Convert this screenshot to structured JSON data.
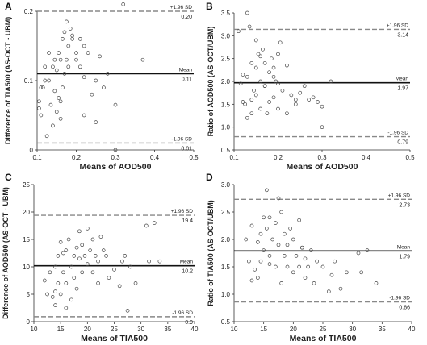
{
  "chart_data": [
    {
      "type": "scatter",
      "panel": "A",
      "xlabel": "Means of AOD500",
      "ylabel": "Difference of TIA500 (AS-OCT - UBM)",
      "xlim": [
        0.1,
        0.5
      ],
      "ylim": [
        0,
        0.2
      ],
      "xticks": [
        "0.1",
        "0.2",
        "0.3",
        "0.4",
        "0.5"
      ],
      "yticks": [
        "0",
        "0.1",
        "0.2"
      ],
      "upper": {
        "label": "+1.96 SD",
        "value": 0.2,
        "text": "0.20"
      },
      "mean": {
        "label": "Mean",
        "value": 0.11,
        "text": "0.11"
      },
      "lower": {
        "label": "-1.96 SD",
        "value": 0.01,
        "text": "0.01"
      },
      "series": [
        {
          "x": [
            0.105,
            0.11,
            0.115,
            0.12,
            0.125,
            0.13,
            0.13,
            0.135,
            0.14,
            0.14,
            0.145,
            0.145,
            0.15,
            0.15,
            0.155,
            0.155,
            0.16,
            0.16,
            0.165,
            0.165,
            0.17,
            0.17,
            0.175,
            0.175,
            0.18,
            0.18,
            0.185,
            0.19,
            0.19,
            0.2,
            0.2,
            0.21,
            0.21,
            0.22,
            0.22,
            0.23,
            0.24,
            0.25,
            0.26,
            0.27,
            0.28,
            0.3,
            0.32,
            0.37,
            0.105,
            0.12,
            0.16,
            0.22,
            0.25,
            0.3,
            0.11
          ],
          "y": [
            0.07,
            0.05,
            0.09,
            0.12,
            0.02,
            0.1,
            0.14,
            0.065,
            0.12,
            0.035,
            0.13,
            0.085,
            0.055,
            0.115,
            0.075,
            0.14,
            0.045,
            0.13,
            0.09,
            0.16,
            0.11,
            0.17,
            0.13,
            0.185,
            0.15,
            0.12,
            0.175,
            0.165,
            0.16,
            0.13,
            0.14,
            0.12,
            0.16,
            0.105,
            0.05,
            0.14,
            0.08,
            0.1,
            0.135,
            0.09,
            0.11,
            0.065,
            0.21,
            0.13,
            0.06,
            0.1,
            0.07,
            0.15,
            0.04,
            0.0,
            0.09
          ]
        }
      ]
    },
    {
      "type": "scatter",
      "panel": "B",
      "xlabel": "Means of AOD500",
      "ylabel": "Ratio of AOD500 (AS-OCT/UBM)",
      "xlim": [
        0.1,
        0.5
      ],
      "ylim": [
        0.5,
        3.5
      ],
      "xticks": [
        "0.1",
        "0.2",
        "0.3",
        "0.4",
        "0.5"
      ],
      "yticks": [
        "0.5",
        "1.0",
        "1.5",
        "2.0",
        "2.5",
        "3.0",
        "3.5"
      ],
      "upper": {
        "label": "+1.96 SD",
        "value": 3.14,
        "text": "3.14"
      },
      "mean": {
        "label": "Mean",
        "value": 1.97,
        "text": "1.97"
      },
      "lower": {
        "label": "-1.96 SD",
        "value": 0.79,
        "text": "0.79"
      },
      "series": [
        {
          "x": [
            0.11,
            0.115,
            0.12,
            0.125,
            0.13,
            0.135,
            0.14,
            0.14,
            0.145,
            0.15,
            0.15,
            0.155,
            0.16,
            0.16,
            0.165,
            0.17,
            0.17,
            0.175,
            0.18,
            0.18,
            0.185,
            0.19,
            0.19,
            0.195,
            0.2,
            0.2,
            0.205,
            0.21,
            0.22,
            0.23,
            0.24,
            0.25,
            0.26,
            0.27,
            0.28,
            0.3,
            0.3,
            0.32,
            0.13,
            0.14,
            0.15,
            0.16,
            0.17,
            0.19,
            0.2,
            0.22,
            0.24,
            0.12,
            0.13,
            0.29
          ],
          "y": [
            3.1,
            1.95,
            2.15,
            1.5,
            3.5,
            3.2,
            2.4,
            1.6,
            1.8,
            2.9,
            2.3,
            2.6,
            2.0,
            1.4,
            2.7,
            1.9,
            2.4,
            1.3,
            2.2,
            1.55,
            2.5,
            2.1,
            1.65,
            2.0,
            1.95,
            2.6,
            2.85,
            1.8,
            2.35,
            1.7,
            1.5,
            1.75,
            1.9,
            1.6,
            1.65,
            1.45,
            1.0,
            2.0,
            2.1,
            1.3,
            1.7,
            2.55,
            1.9,
            2.3,
            1.4,
            1.3,
            1.6,
            1.55,
            1.2,
            1.55
          ]
        }
      ]
    },
    {
      "type": "scatter",
      "panel": "C",
      "xlabel": "Means of TIA500",
      "ylabel": "Difference of AOD500 (AS-OCT - UBM)",
      "xlim": [
        10,
        40
      ],
      "ylim": [
        0,
        25
      ],
      "xticks": [
        "10",
        "15",
        "20",
        "25",
        "30",
        "35",
        "40"
      ],
      "yticks": [
        "0",
        "5",
        "10",
        "15",
        "20",
        "25"
      ],
      "upper": {
        "label": "+1.96 SD",
        "value": 19.4,
        "text": "19.4"
      },
      "mean": {
        "label": "Mean",
        "value": 10.2,
        "text": "10.2"
      },
      "lower": {
        "label": "-1.96 SD",
        "value": 0.9,
        "text": "0.9"
      },
      "series": [
        {
          "x": [
            12,
            12.5,
            13,
            13.5,
            14,
            14,
            14.5,
            14.5,
            15,
            15,
            15.5,
            15.5,
            16,
            16,
            16.5,
            17,
            17,
            17.5,
            17.5,
            18,
            18,
            18.5,
            18.5,
            19,
            19,
            19.5,
            20,
            20,
            20.5,
            21,
            21,
            21.5,
            22,
            22,
            22.5,
            23,
            23.5,
            24,
            25,
            26,
            26.5,
            27,
            28,
            29,
            31,
            31.5,
            32.5,
            33.5,
            14,
            16,
            27.5
          ],
          "y": [
            7.5,
            5,
            9,
            4.5,
            10,
            3,
            7,
            12,
            5,
            14.5,
            9,
            12.5,
            7,
            13,
            15,
            4,
            10,
            8,
            12,
            13.5,
            6,
            16.5,
            11.5,
            9,
            14,
            12,
            10.5,
            17,
            13,
            15,
            9,
            12,
            11,
            7,
            15.5,
            13,
            12,
            8,
            9.5,
            6.5,
            11,
            12,
            10,
            7,
            17.5,
            11,
            18,
            11,
            5.5,
            2.5,
            2
          ]
        }
      ]
    },
    {
      "type": "scatter",
      "panel": "D",
      "xlabel": "Means of TIA500",
      "ylabel": "Ratio of TIA500 (AS-OCT/UBM)",
      "xlim": [
        10,
        40
      ],
      "ylim": [
        0.5,
        3.0
      ],
      "xticks": [
        "10",
        "15",
        "20",
        "25",
        "30",
        "35",
        "40"
      ],
      "yticks": [
        "0.5",
        "1.0",
        "1.5",
        "2.0",
        "2.5",
        "3.0"
      ],
      "upper": {
        "label": "+1.96 SD",
        "value": 2.73,
        "text": "2.73"
      },
      "mean": {
        "label": "Mean",
        "value": 1.79,
        "text": "1.79"
      },
      "lower": {
        "label": "-1.96 SD",
        "value": 0.86,
        "text": "0.86"
      },
      "series": [
        {
          "x": [
            12,
            12.5,
            13,
            13.5,
            14,
            14,
            14.5,
            14.5,
            15,
            15,
            15.5,
            15.5,
            16,
            16,
            16.5,
            17,
            17,
            17.5,
            17.5,
            18,
            18,
            18.5,
            18.5,
            19,
            19,
            19.5,
            20,
            20,
            20.5,
            21,
            21,
            21.5,
            22,
            22,
            22.5,
            23,
            23.5,
            24,
            25,
            26,
            26.5,
            27,
            28,
            29,
            31,
            31.5,
            32.5,
            34,
            13,
            16,
            21.5
          ],
          "y": [
            2.0,
            1.6,
            2.25,
            1.45,
            1.95,
            1.3,
            2.1,
            1.6,
            2.4,
            1.8,
            2.9,
            2.2,
            1.7,
            2.4,
            2.0,
            1.5,
            2.3,
            1.9,
            2.75,
            1.2,
            2.5,
            1.7,
            2.1,
            1.5,
            1.9,
            2.2,
            2.0,
            1.4,
            1.7,
            1.5,
            2.35,
            1.85,
            1.3,
            1.65,
            1.5,
            1.8,
            1.2,
            1.6,
            1.5,
            1.05,
            1.35,
            1.6,
            1.1,
            1.4,
            1.75,
            1.4,
            1.8,
            1.2,
            1.25,
            1.55,
            1.85
          ]
        }
      ]
    }
  ]
}
